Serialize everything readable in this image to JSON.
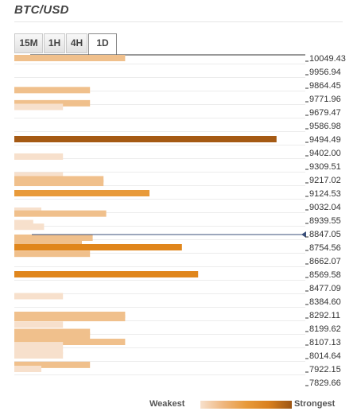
{
  "title": "BTC/USD",
  "tabs": [
    {
      "label": "15M",
      "active": false
    },
    {
      "label": "1H",
      "active": false
    },
    {
      "label": "4H",
      "active": false
    },
    {
      "label": "1D",
      "active": true
    }
  ],
  "legend": {
    "weakest_label": "Weakest",
    "strongest_label": "Strongest"
  },
  "colors": {
    "weakest": "#f7e0cc",
    "weak": "#f0c08c",
    "medium": "#e89a3a",
    "strong": "#e0861c",
    "strongest": "#a55a14",
    "current_price_line": "#3a4f7a"
  },
  "chart_data": {
    "type": "bar",
    "orientation": "horizontal",
    "price_levels": [
      "10049.43",
      "9956.94",
      "9864.45",
      "9771.96",
      "9679.47",
      "9586.98",
      "9494.49",
      "9402.00",
      "9309.51",
      "9217.02",
      "9124.53",
      "9032.04",
      "8939.55",
      "8847.05",
      "8754.56",
      "8662.07",
      "8569.58",
      "8477.09",
      "8384.60",
      "8292.11",
      "8199.62",
      "8107.13",
      "8014.64",
      "7922.15",
      "7829.66"
    ],
    "current_price": 8847.05,
    "y_range": [
      7829.66,
      10049.43
    ],
    "strength_range": [
      0,
      10
    ],
    "bars": [
      {
        "price": 10049.43,
        "strength": 4.1,
        "level": "weak"
      },
      {
        "price": 9830.0,
        "strength": 2.8,
        "level": "weak"
      },
      {
        "price": 9740.0,
        "strength": 2.8,
        "level": "weak"
      },
      {
        "price": 9715.0,
        "strength": 1.8,
        "level": "weakest"
      },
      {
        "price": 9494.49,
        "strength": 9.7,
        "level": "strongest"
      },
      {
        "price": 9375.0,
        "strength": 1.8,
        "level": "weakest"
      },
      {
        "price": 9247.0,
        "strength": 1.8,
        "level": "weakest"
      },
      {
        "price": 9220.0,
        "strength": 3.3,
        "level": "weak"
      },
      {
        "price": 9195.0,
        "strength": 3.3,
        "level": "weak"
      },
      {
        "price": 9124.53,
        "strength": 5.0,
        "level": "medium"
      },
      {
        "price": 9005.0,
        "strength": 1.0,
        "level": "weakest"
      },
      {
        "price": 8985.0,
        "strength": 3.4,
        "level": "weak"
      },
      {
        "price": 8920.0,
        "strength": 0.7,
        "level": "weakest"
      },
      {
        "price": 8895.0,
        "strength": 1.1,
        "level": "weakest"
      },
      {
        "price": 8820.0,
        "strength": 2.9,
        "level": "weak"
      },
      {
        "price": 8795.0,
        "strength": 2.5,
        "level": "weak"
      },
      {
        "price": 8754.56,
        "strength": 6.2,
        "level": "strong"
      },
      {
        "price": 8710.0,
        "strength": 2.8,
        "level": "weak"
      },
      {
        "price": 8569.58,
        "strength": 6.8,
        "level": "strong"
      },
      {
        "price": 8420.0,
        "strength": 1.8,
        "level": "weakest"
      },
      {
        "price": 8292.11,
        "strength": 4.1,
        "level": "weak"
      },
      {
        "price": 8270.0,
        "strength": 4.1,
        "level": "weak"
      },
      {
        "price": 8225.0,
        "strength": 1.8,
        "level": "weakest"
      },
      {
        "price": 8175.0,
        "strength": 2.8,
        "level": "weak"
      },
      {
        "price": 8150.0,
        "strength": 2.8,
        "level": "weak"
      },
      {
        "price": 8107.13,
        "strength": 4.1,
        "level": "weak"
      },
      {
        "price": 8085.0,
        "strength": 1.8,
        "level": "weakest"
      },
      {
        "price": 8045.0,
        "strength": 1.8,
        "level": "weakest"
      },
      {
        "price": 8014.64,
        "strength": 1.8,
        "level": "weakest"
      },
      {
        "price": 7950.0,
        "strength": 2.8,
        "level": "weak"
      },
      {
        "price": 7922.15,
        "strength": 1.0,
        "level": "weakest"
      }
    ]
  }
}
